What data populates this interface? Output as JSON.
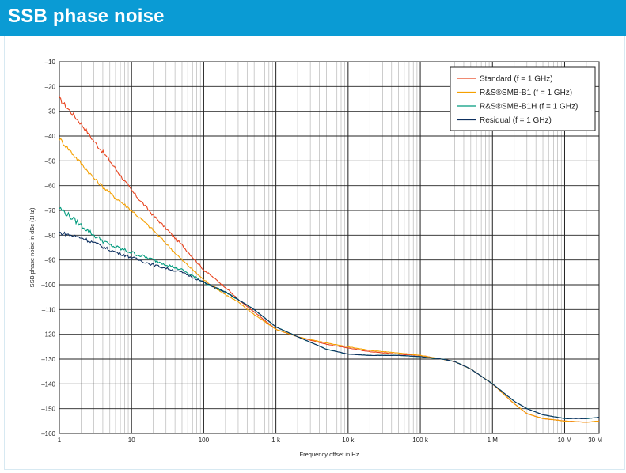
{
  "header": {
    "title": "SSB phase noise"
  },
  "chart_data": {
    "type": "line",
    "title": "",
    "xlabel": "Frequency offset in Hz",
    "ylabel": "SSB phase noise in dBc (1Hz)",
    "xscale": "log",
    "xlim": [
      1,
      30000000
    ],
    "ylim": [
      -160,
      -10
    ],
    "x_ticks": [
      1,
      10,
      100,
      1000,
      10000,
      100000,
      1000000,
      10000000,
      30000000
    ],
    "x_tick_labels": [
      "1",
      "10",
      "100",
      "1 k",
      "10 k",
      "100 k",
      "1 M",
      "10 M",
      "30 M"
    ],
    "y_ticks": [
      -160,
      -150,
      -140,
      -130,
      -120,
      -110,
      -100,
      -90,
      -80,
      -70,
      -60,
      -50,
      -40,
      -30,
      -20,
      -10
    ],
    "y_tick_labels": [
      "–160",
      "–150",
      "–140",
      "–130",
      "–120",
      "–110",
      "–100",
      "–90",
      "–80",
      "–70",
      "–60",
      "–50",
      "–40",
      "–30",
      "–20",
      "–10"
    ],
    "grid": true,
    "legend_position": "top-right",
    "series": [
      {
        "name": "Standard (f = 1 GHz)",
        "color": "#e8431e",
        "x": [
          1,
          2,
          3,
          5,
          10,
          20,
          50,
          100,
          200,
          300,
          500,
          1000,
          2000,
          5000,
          10000,
          20000,
          50000,
          100000,
          200000,
          300000,
          500000,
          1000000,
          2000000,
          3000000,
          5000000,
          10000000,
          20000000,
          30000000
        ],
        "y": [
          -25,
          -35,
          -42,
          -50,
          -62,
          -72,
          -84,
          -94,
          -101,
          -106,
          -111,
          -118,
          -121,
          -124,
          -125.5,
          -127,
          -128,
          -128.5,
          -130,
          -131,
          -134,
          -140,
          -148,
          -152,
          -154,
          -155,
          -155.5,
          -155
        ]
      },
      {
        "name": "R&S®SMB-B1 (f = 1 GHz)",
        "color": "#f5a000",
        "x": [
          1,
          2,
          3,
          5,
          10,
          20,
          50,
          100,
          200,
          300,
          500,
          1000,
          2000,
          5000,
          10000,
          20000,
          50000,
          100000,
          200000,
          300000,
          500000,
          1000000,
          2000000,
          3000000,
          5000000,
          10000000,
          20000000,
          30000000
        ],
        "y": [
          -41,
          -51,
          -57,
          -63,
          -70,
          -78,
          -90,
          -98,
          -104,
          -107,
          -112,
          -118,
          -121,
          -123.5,
          -125,
          -126.5,
          -127.5,
          -128.5,
          -130,
          -131,
          -134,
          -140,
          -148,
          -152,
          -154,
          -155,
          -155.5,
          -155
        ]
      },
      {
        "name": "R&S®SMB-B1H (f = 1 GHz)",
        "color": "#009b7d",
        "x": [
          1,
          2,
          3,
          5,
          10,
          20,
          50,
          100,
          200,
          300,
          500,
          1000,
          2000,
          5000,
          10000,
          20000,
          50000,
          100000,
          200000,
          300000,
          500000,
          1000000,
          2000000,
          3000000,
          5000000,
          10000000,
          20000000,
          30000000
        ],
        "y": [
          -69,
          -76,
          -80,
          -84,
          -87,
          -90,
          -94,
          -99,
          -103,
          -106,
          -110,
          -117,
          -121,
          -126,
          -128,
          -128.5,
          -128.5,
          -129,
          -130,
          -131,
          -134,
          -140,
          -147,
          -150,
          -152.5,
          -154,
          -154,
          -153.5
        ]
      },
      {
        "name": "Residual (f = 1 GHz)",
        "color": "#0e3060",
        "x": [
          1,
          2,
          3,
          5,
          10,
          20,
          50,
          100,
          200,
          300,
          500,
          1000,
          2000,
          5000,
          10000,
          20000,
          50000,
          100000,
          200000,
          300000,
          500000,
          1000000,
          2000000,
          3000000,
          5000000,
          10000000,
          20000000,
          30000000
        ],
        "y": [
          -79,
          -81,
          -83,
          -86,
          -89,
          -92,
          -95,
          -99,
          -103,
          -106,
          -110,
          -117,
          -121,
          -126,
          -128,
          -128.5,
          -128.5,
          -129,
          -130,
          -131,
          -134,
          -140,
          -147,
          -150,
          -152.5,
          -154,
          -154,
          -153.5
        ]
      }
    ]
  }
}
